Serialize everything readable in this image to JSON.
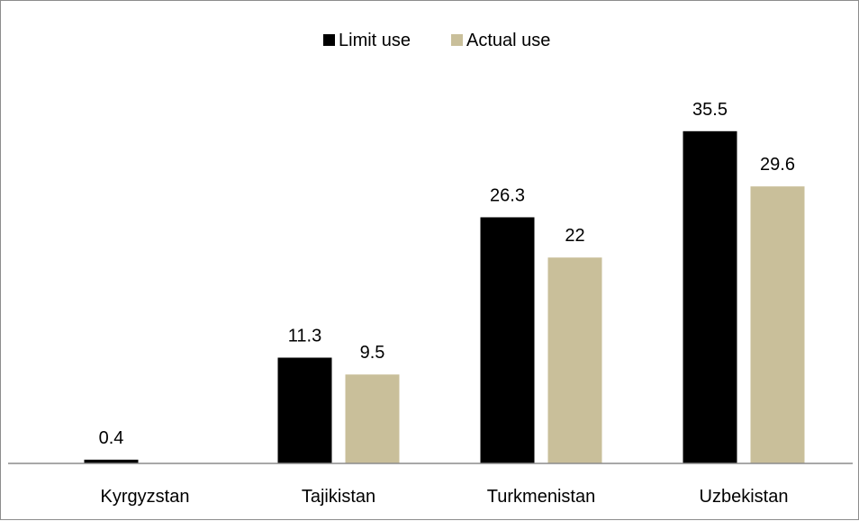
{
  "chart_data": {
    "type": "bar",
    "categories": [
      "Kyrgyzstan",
      "Tajikistan",
      "Turkmenistan",
      "Uzbekistan"
    ],
    "series": [
      {
        "name": "Limit use",
        "color": "#000000",
        "values": [
          0.4,
          11.3,
          26.3,
          35.5
        ],
        "labels": [
          "0.4",
          "11.3",
          "26.3",
          "35.5"
        ]
      },
      {
        "name": "Actual use",
        "color": "#c9bf9a",
        "values": [
          0,
          9.5,
          22,
          29.6
        ],
        "labels": [
          "",
          "9.5",
          "22",
          "29.6"
        ]
      }
    ],
    "ylim": [
      0,
      40
    ],
    "legend_position": "top-center",
    "grid": false
  }
}
